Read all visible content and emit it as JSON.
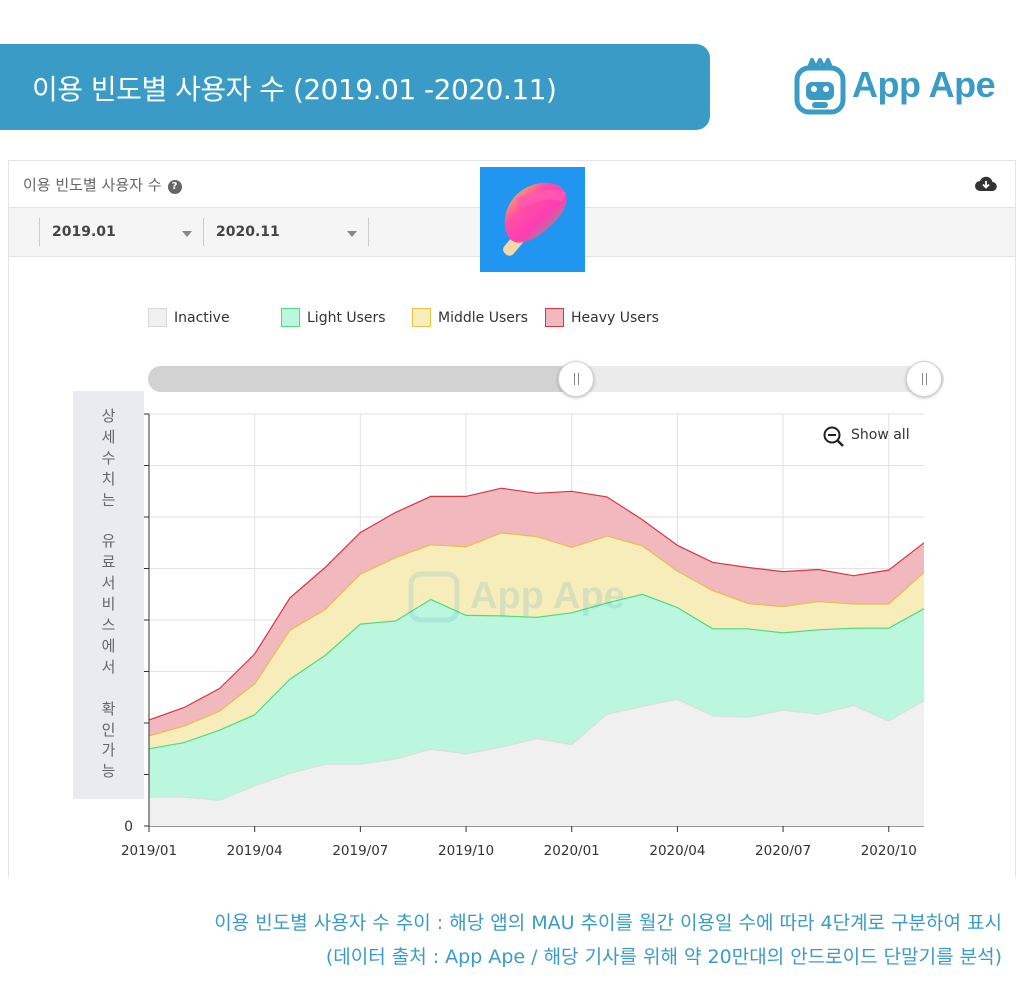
{
  "header": {
    "banner_title": "이용 빈도별 사용자 수 (2019.01 -2020.11)",
    "logo_text": "App Ape",
    "brand_color": "#3a9cc6"
  },
  "panel": {
    "title": "이용 빈도별 사용자 수",
    "help_icon": "question-circle-icon",
    "download_icon": "cloud-download-icon",
    "start_select": "2019.01",
    "end_select": "2020.11"
  },
  "side_note": [
    "상",
    "세",
    "수",
    "치",
    "는",
    "",
    "유",
    "료",
    "서",
    "비",
    "스",
    "에",
    "서",
    "",
    "확",
    "인",
    "가",
    "능"
  ],
  "zoom": {
    "label": "Show all",
    "icon": "zoom-out-icon"
  },
  "watermark": "App Ape",
  "chart_data": {
    "type": "area",
    "stacked": true,
    "title": "이용 빈도별 사용자 수",
    "x": [
      "2019/01",
      "2019/02",
      "2019/03",
      "2019/04",
      "2019/05",
      "2019/06",
      "2019/07",
      "2019/08",
      "2019/09",
      "2019/10",
      "2019/11",
      "2019/12",
      "2020/01",
      "2020/02",
      "2020/03",
      "2020/04",
      "2020/05",
      "2020/06",
      "2020/07",
      "2020/08",
      "2020/09",
      "2020/10",
      "2020/11"
    ],
    "x_tick_labels": [
      "2019/01",
      "2019/04",
      "2019/07",
      "2019/10",
      "2020/01",
      "2020/04",
      "2020/07",
      "2020/10"
    ],
    "y_tick_labels": [
      "0"
    ],
    "ylim": [
      0,
      8
    ],
    "grid": true,
    "legend_position": "top-left",
    "series": [
      {
        "name": "Inactive",
        "fill": "#f0f0f0",
        "stroke": "#dddddd",
        "values": [
          0.56,
          0.56,
          0.5,
          0.78,
          1.02,
          1.2,
          1.2,
          1.3,
          1.49,
          1.4,
          1.53,
          1.7,
          1.58,
          2.17,
          2.32,
          2.46,
          2.14,
          2.11,
          2.25,
          2.17,
          2.34,
          2.04,
          2.43
        ]
      },
      {
        "name": "Light Users",
        "fill": "#bbf7de",
        "stroke": "#4bdc7f",
        "values": [
          0.94,
          1.06,
          1.36,
          1.38,
          1.83,
          2.11,
          2.72,
          2.68,
          2.91,
          2.69,
          2.55,
          2.35,
          2.56,
          2.16,
          2.18,
          1.78,
          1.69,
          1.72,
          1.5,
          1.64,
          1.5,
          1.8,
          1.79
        ]
      },
      {
        "name": "Middle Users",
        "fill": "#f7edbb",
        "stroke": "#e8c046",
        "values": [
          0.25,
          0.32,
          0.37,
          0.6,
          0.95,
          0.89,
          0.97,
          1.23,
          1.06,
          1.33,
          1.61,
          1.57,
          1.27,
          1.3,
          0.94,
          0.71,
          0.74,
          0.49,
          0.51,
          0.55,
          0.47,
          0.47,
          0.7
        ]
      },
      {
        "name": "Heavy Users",
        "fill": "#f1b9be",
        "stroke": "#d93540",
        "values": [
          0.31,
          0.36,
          0.44,
          0.58,
          0.63,
          0.82,
          0.81,
          0.88,
          0.94,
          0.98,
          0.87,
          0.84,
          1.09,
          0.76,
          0.51,
          0.5,
          0.55,
          0.7,
          0.68,
          0.62,
          0.55,
          0.66,
          0.58
        ]
      }
    ]
  },
  "caption": {
    "line1": "이용 빈도별 사용자 수 추이 : 해당 앱의 MAU 추이를 월간 이용일 수에 따라 4단계로 구분하여 표시",
    "line2": "(데이터 출처 : App Ape / 해당 기사를 위해 약 20만대의 안드로이드 단말기를 분석)"
  }
}
